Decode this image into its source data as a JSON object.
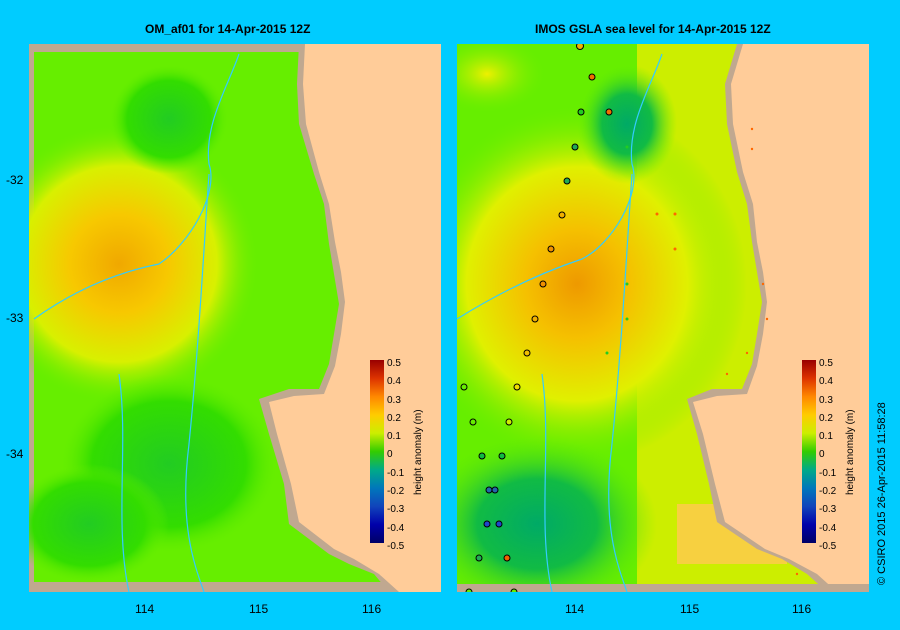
{
  "left_panel": {
    "title": "OM_af01  for 14-Apr-2015 12Z"
  },
  "right_panel": {
    "title": "IMOS GSLA sea level  for 14-Apr-2015 12Z"
  },
  "axes": {
    "lat_ticks": [
      "-32",
      "-33",
      "-34"
    ],
    "lon_ticks": [
      "114",
      "115",
      "116"
    ]
  },
  "colorbar": {
    "label": "height anomaly (m)",
    "ticks": [
      "0.5",
      "0.4",
      "0.3",
      "0.2",
      "0.1",
      "0",
      "-0.1",
      "-0.2",
      "-0.3",
      "-0.4",
      "-0.5"
    ]
  },
  "credit": "© CSIRO 2015   26-Apr-2015 11:58:28",
  "colors": {
    "background": "#00ccff",
    "land": "#ffcc99",
    "shelf": "#c0a890",
    "ocean_base": "#66ee00"
  }
}
